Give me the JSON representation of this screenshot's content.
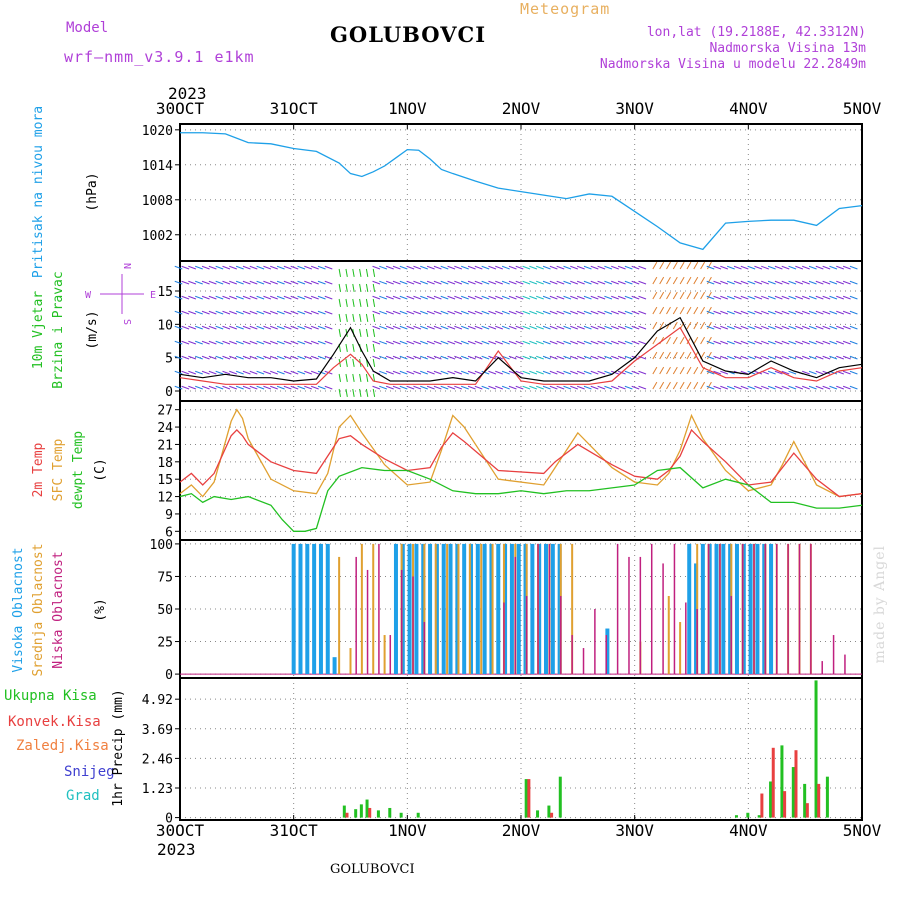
{
  "header": {
    "title": "GOLUBOVCI",
    "model_label": "Model",
    "model_name": "wrf—nmm_v3.9.1  e1km",
    "meteogram": "Meteogram",
    "coords": "lon,lat (19.2188E, 42.3312N)",
    "height": "Nadmorska Visina 13m",
    "model_height": "Nadmorska Visina u modelu 22.2849m",
    "year": "2023"
  },
  "footer": {
    "station": "GOLUBOVCI",
    "signature": "made by Angel"
  },
  "colors": {
    "pressure": "#1ea0e8",
    "wind": "#22c022",
    "temp2m": "#e84040",
    "sfc": "#e0a030",
    "dewpt": "#22c022",
    "high_cloud": "#1ea0e8",
    "mid_cloud": "#e0a030",
    "low_cloud": "#c0207f",
    "total_precip": "#22c022",
    "conv_precip": "#e84040",
    "frozen": "#f08040",
    "snow": "#4040d0",
    "graupel": "#20c0c0",
    "compass": "#b040d8"
  },
  "chart_data": [
    {
      "type": "line",
      "name": "pressure",
      "x_labels": [
        "30OCT",
        "31OCT",
        "1NOV",
        "2NOV",
        "3NOV",
        "4NOV",
        "5NOV"
      ],
      "ylabel": "Pritisak na nivou mora",
      "unit": "(hPa)",
      "ylim": [
        997.5,
        1021
      ],
      "yticks": [
        1002,
        1008,
        1014,
        1020
      ],
      "grid": true,
      "series": [
        {
          "x": [
            0,
            0.2,
            0.4,
            0.6,
            0.8,
            1.0,
            1.2,
            1.4,
            1.5,
            1.6,
            1.7,
            1.8,
            1.9,
            2.0,
            2.1,
            2.2,
            2.3,
            2.4,
            2.6,
            2.8,
            3.0,
            3.2,
            3.4,
            3.6,
            3.8,
            4.0,
            4.2,
            4.4,
            4.6,
            4.8,
            5.0,
            5.2,
            5.4,
            5.6,
            5.8,
            6.0
          ],
          "values": [
            1019.5,
            1019.5,
            1019.3,
            1017.8,
            1017.6,
            1016.8,
            1016.3,
            1014.3,
            1012.5,
            1012.0,
            1012.8,
            1013.8,
            1015.2,
            1016.6,
            1016.5,
            1015.0,
            1013.2,
            1012.5,
            1011.2,
            1010.0,
            1009.4,
            1008.8,
            1008.2,
            1009.0,
            1008.6,
            1006.0,
            1003.4,
            1000.6,
            999.5,
            1004.0,
            1004.3,
            1004.5,
            1004.5,
            1003.6,
            1006.5,
            1007.0
          ]
        }
      ]
    },
    {
      "type": "line",
      "name": "wind",
      "ylabel": "10m Vjetar",
      "ylabel2": "Brzina i Pravac",
      "unit": "(m/s)",
      "compass": {
        "n": "N",
        "s": "S",
        "w": "W",
        "e": "E"
      },
      "ylim": [
        -1.5,
        19.5
      ],
      "yticks": [
        0,
        5,
        10,
        15
      ],
      "grid": true,
      "series": [
        {
          "name": "speed",
          "x": [
            0,
            0.2,
            0.4,
            0.6,
            0.8,
            1.0,
            1.2,
            1.35,
            1.5,
            1.6,
            1.7,
            1.85,
            2.0,
            2.2,
            2.4,
            2.6,
            2.8,
            3.0,
            3.2,
            3.4,
            3.6,
            3.8,
            4.0,
            4.2,
            4.4,
            4.6,
            4.8,
            5.0,
            5.2,
            5.4,
            5.6,
            5.8,
            6.0
          ],
          "values": [
            2.5,
            2.0,
            2.5,
            2.0,
            2.0,
            1.5,
            1.8,
            5.5,
            9.5,
            6.0,
            3.0,
            1.5,
            1.5,
            1.5,
            2.0,
            1.5,
            5.0,
            2.0,
            1.5,
            1.5,
            1.5,
            2.5,
            5.0,
            9.0,
            11.0,
            4.5,
            3.0,
            2.5,
            4.5,
            3.0,
            2.0,
            3.5,
            4.0
          ]
        },
        {
          "name": "gust",
          "x": [
            0,
            0.2,
            0.4,
            0.6,
            0.8,
            1.0,
            1.2,
            1.35,
            1.5,
            1.6,
            1.7,
            1.85,
            2.0,
            2.2,
            2.4,
            2.6,
            2.8,
            3.0,
            3.2,
            3.4,
            3.6,
            3.8,
            4.0,
            4.2,
            4.4,
            4.6,
            4.8,
            5.0,
            5.2,
            5.4,
            5.6,
            5.8,
            6.0
          ],
          "values": [
            2.0,
            1.5,
            1.0,
            1.0,
            1.0,
            1.0,
            1.0,
            3.5,
            5.5,
            4.0,
            1.5,
            1.0,
            1.0,
            1.0,
            1.0,
            1.0,
            6.0,
            1.5,
            1.0,
            1.0,
            1.0,
            1.5,
            4.5,
            7.0,
            9.5,
            3.5,
            2.0,
            2.0,
            3.5,
            2.0,
            1.5,
            3.0,
            3.5
          ]
        }
      ]
    },
    {
      "type": "line",
      "name": "temperature",
      "ylabel": "2m Temp",
      "ylabel2": "SFC Temp",
      "ylabel3": "dewpt Temp",
      "unit": "(C)",
      "ylim": [
        4.5,
        28.5
      ],
      "yticks": [
        6,
        9,
        12,
        15,
        18,
        21,
        24,
        27
      ],
      "grid": true,
      "series": [
        {
          "name": "2m",
          "x": [
            0,
            0.1,
            0.2,
            0.3,
            0.45,
            0.5,
            0.55,
            0.6,
            0.8,
            1.0,
            1.2,
            1.3,
            1.4,
            1.5,
            1.6,
            1.8,
            2.0,
            2.2,
            2.3,
            2.4,
            2.5,
            2.8,
            3.2,
            3.3,
            3.4,
            3.5,
            3.8,
            4.0,
            4.2,
            4.3,
            4.4,
            4.5,
            4.6,
            4.8,
            5.0,
            5.2,
            5.3,
            5.4,
            5.6,
            5.8,
            6.0
          ],
          "values": [
            14.5,
            16,
            14,
            16,
            22.5,
            23.5,
            22.5,
            21,
            18,
            16.5,
            16,
            19,
            22,
            22.5,
            21,
            18.5,
            16.5,
            17,
            20.5,
            23,
            21.5,
            16.5,
            16,
            18,
            19.5,
            21,
            17.5,
            15.5,
            15,
            16.5,
            19,
            23.5,
            21.5,
            18,
            14,
            14.5,
            17,
            19.5,
            15,
            12,
            12.5
          ]
        },
        {
          "name": "sfc",
          "x": [
            0,
            0.1,
            0.2,
            0.3,
            0.45,
            0.5,
            0.55,
            0.6,
            0.8,
            1.0,
            1.2,
            1.3,
            1.4,
            1.5,
            1.6,
            1.8,
            2.0,
            2.2,
            2.3,
            2.4,
            2.5,
            2.8,
            3.2,
            3.3,
            3.4,
            3.5,
            3.8,
            4.0,
            4.2,
            4.3,
            4.4,
            4.5,
            4.6,
            4.8,
            5.0,
            5.2,
            5.3,
            5.4,
            5.6,
            5.8,
            6.0
          ],
          "values": [
            12.5,
            14,
            12,
            14.5,
            25,
            27,
            25.5,
            22,
            15,
            13,
            12.5,
            16,
            24,
            26,
            23,
            17.5,
            14,
            14.5,
            20,
            26,
            24,
            15,
            14,
            17,
            20,
            23,
            17,
            14.5,
            14,
            16,
            20,
            26,
            22,
            16.5,
            13,
            14,
            17.5,
            21.5,
            14,
            12,
            12.5
          ]
        },
        {
          "name": "dewpt",
          "x": [
            0,
            0.1,
            0.2,
            0.3,
            0.45,
            0.6,
            0.8,
            0.9,
            1.0,
            1.1,
            1.2,
            1.3,
            1.4,
            1.6,
            1.8,
            2.0,
            2.2,
            2.4,
            2.6,
            2.8,
            3.0,
            3.2,
            3.4,
            3.6,
            3.8,
            4.0,
            4.2,
            4.4,
            4.6,
            4.8,
            5.0,
            5.2,
            5.4,
            5.6,
            5.8,
            6.0
          ],
          "values": [
            12,
            12.5,
            11,
            12,
            11.5,
            12,
            10.5,
            8,
            6,
            6,
            6.5,
            13,
            15.5,
            17,
            16.5,
            16.5,
            15,
            13,
            12.5,
            12.5,
            13,
            12.5,
            13,
            13,
            13.5,
            14,
            16.5,
            17,
            13.5,
            15,
            14,
            11,
            11,
            10,
            10,
            10.5
          ]
        }
      ]
    },
    {
      "type": "bar",
      "name": "cloud",
      "ylabel": "Visoka Oblacnost",
      "ylabel2": "Srednja Oblacnost",
      "ylabel3": "Niska Oblacnost",
      "unit": "(%)",
      "ylim": [
        -3,
        103
      ],
      "yticks": [
        0,
        25,
        50,
        75,
        100
      ],
      "grid": true,
      "series": [
        {
          "name": "high",
          "x": [
            1.0,
            1.06,
            1.12,
            1.18,
            1.24,
            1.3,
            1.36,
            1.9,
            1.96,
            2.02,
            2.08,
            2.14,
            2.2,
            2.26,
            2.32,
            2.38,
            2.44,
            2.5,
            2.56,
            2.62,
            2.68,
            2.74,
            2.8,
            2.86,
            2.92,
            2.98,
            3.04,
            3.1,
            3.16,
            3.22,
            3.28,
            3.34,
            3.76,
            4.48,
            4.54,
            4.6,
            4.66,
            4.72,
            4.78,
            4.84,
            4.9,
            4.96,
            5.02,
            5.08,
            5.14,
            5.2
          ],
          "values": [
            100,
            100,
            100,
            100,
            100,
            100,
            13,
            100,
            100,
            100,
            100,
            100,
            100,
            100,
            100,
            100,
            100,
            100,
            100,
            100,
            100,
            100,
            100,
            100,
            100,
            100,
            100,
            100,
            100,
            100,
            100,
            100,
            35,
            100,
            85,
            100,
            100,
            100,
            100,
            100,
            100,
            100,
            100,
            100,
            100,
            100
          ]
        },
        {
          "name": "mid",
          "x": [
            1.4,
            1.5,
            1.6,
            1.7,
            1.8,
            1.95,
            2.05,
            2.15,
            2.25,
            2.35,
            2.45,
            2.55,
            2.65,
            2.75,
            2.85,
            2.95,
            3.05,
            3.15,
            3.25,
            3.35,
            3.45,
            4.05,
            4.3,
            4.4,
            4.55,
            4.65,
            4.75,
            4.85,
            4.95,
            5.05,
            5.15,
            5.25,
            5.35,
            5.45,
            5.55
          ],
          "values": [
            90,
            20,
            100,
            100,
            30,
            100,
            100,
            100,
            100,
            100,
            100,
            100,
            100,
            100,
            100,
            100,
            100,
            100,
            100,
            100,
            100,
            25,
            60,
            40,
            100,
            100,
            100,
            100,
            100,
            100,
            100,
            100,
            100,
            100,
            100
          ]
        },
        {
          "name": "low",
          "x": [
            1.55,
            1.65,
            1.75,
            1.85,
            1.95,
            2.05,
            2.15,
            2.85,
            2.95,
            3.05,
            3.15,
            3.25,
            3.35,
            3.45,
            3.55,
            3.65,
            3.75,
            3.85,
            3.95,
            4.05,
            4.15,
            4.25,
            4.35,
            4.45,
            4.55,
            4.65,
            4.75,
            4.85,
            4.95,
            5.05,
            5.15,
            5.25,
            5.35,
            5.45,
            5.55,
            5.65,
            5.75,
            5.85
          ],
          "values": [
            90,
            80,
            100,
            30,
            80,
            75,
            40,
            55,
            90,
            60,
            100,
            100,
            60,
            30,
            20,
            50,
            30,
            100,
            90,
            90,
            100,
            85,
            100,
            55,
            50,
            100,
            100,
            60,
            100,
            100,
            100,
            100,
            100,
            100,
            100,
            10,
            30,
            15
          ]
        }
      ]
    },
    {
      "type": "bar",
      "name": "precip",
      "ylabel": "1hr Precip",
      "unit": "(mm)",
      "legend": [
        "Ukupna Kisa",
        "Konvek.Kisa",
        "Zaledj.Kisa",
        "Snijeg",
        "Grad"
      ],
      "ylim": [
        -0.1,
        5.8
      ],
      "yticks": [
        0,
        1.23,
        2.46,
        3.69,
        4.92
      ],
      "grid": true,
      "series": [
        {
          "name": "total",
          "x": [
            1.45,
            1.55,
            1.6,
            1.65,
            1.75,
            1.85,
            1.95,
            2.1,
            3.05,
            3.15,
            3.25,
            3.35,
            4.9,
            5.0,
            5.1,
            5.2,
            5.3,
            5.4,
            5.5,
            5.6,
            5.7
          ],
          "values": [
            0.5,
            0.35,
            0.55,
            0.75,
            0.3,
            0.4,
            0.2,
            0.2,
            1.6,
            0.3,
            0.5,
            1.7,
            0.1,
            0.2,
            0.1,
            1.5,
            3.0,
            2.1,
            1.4,
            5.7,
            1.7
          ]
        },
        {
          "name": "convective",
          "x": [
            1.5,
            1.7,
            3.1,
            3.3,
            5.15,
            5.25,
            5.35,
            5.45,
            5.55,
            5.65
          ],
          "values": [
            0.2,
            0.4,
            1.6,
            0.2,
            1.0,
            2.9,
            1.1,
            2.8,
            0.6,
            1.4
          ]
        }
      ]
    }
  ]
}
